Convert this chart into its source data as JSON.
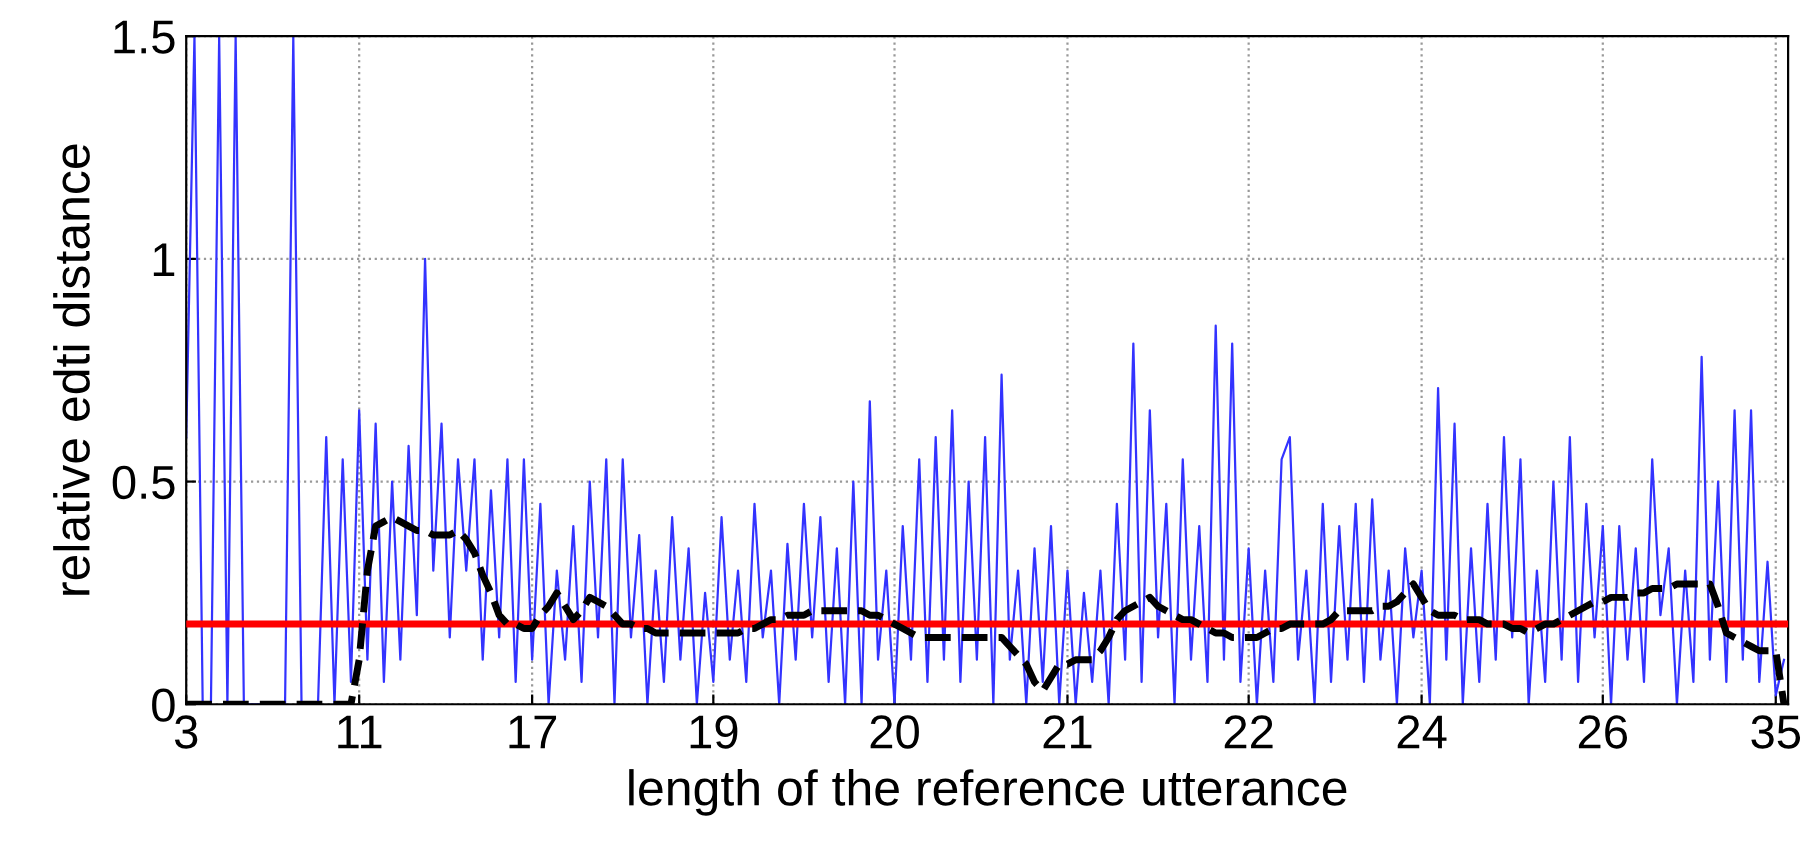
{
  "chart_data": {
    "type": "line",
    "xlabel": "length of the reference utterance",
    "ylabel": "relative edti distance",
    "ylim": [
      0,
      1.5
    ],
    "yticks": [
      0,
      {
        "value": 0.5,
        "label": "0.5"
      },
      1,
      {
        "value": 1.5,
        "label": "1.5"
      }
    ],
    "grid": true,
    "categories": [
      "3",
      null,
      null,
      null,
      null,
      null,
      null,
      null,
      null,
      null,
      null,
      null,
      null,
      null,
      null,
      null,
      null,
      null,
      null,
      null,
      null,
      "11",
      null,
      null,
      null,
      null,
      null,
      null,
      null,
      null,
      null,
      null,
      null,
      null,
      null,
      null,
      null,
      null,
      null,
      null,
      null,
      null,
      "17",
      null,
      null,
      null,
      null,
      null,
      null,
      null,
      null,
      null,
      null,
      null,
      null,
      null,
      null,
      null,
      null,
      null,
      null,
      null,
      null,
      null,
      "19",
      null,
      null,
      null,
      null,
      null,
      null,
      null,
      null,
      null,
      null,
      null,
      null,
      null,
      null,
      null,
      null,
      null,
      null,
      null,
      null,
      null,
      "20",
      null,
      null,
      null,
      null,
      null,
      null,
      null,
      null,
      null,
      null,
      null,
      null,
      null,
      null,
      null,
      null,
      null,
      null,
      null,
      null,
      "21",
      null,
      null,
      null,
      null,
      null,
      null,
      null,
      null,
      null,
      null,
      null,
      null,
      null,
      null,
      null,
      null,
      null,
      null,
      null,
      null,
      null,
      "22",
      null,
      null,
      null,
      null,
      null,
      null,
      null,
      null,
      null,
      null,
      null,
      null,
      null,
      null,
      null,
      null,
      null,
      null,
      null,
      null,
      "24",
      null,
      null,
      null,
      null,
      null,
      null,
      null,
      null,
      null,
      null,
      null,
      null,
      null,
      null,
      null,
      null,
      null,
      null,
      null,
      null,
      null,
      "26",
      null,
      null,
      null,
      null,
      null,
      null,
      null,
      null,
      null,
      null,
      null,
      null,
      null,
      null,
      null,
      null,
      null,
      null,
      null,
      null,
      "35",
      null
    ],
    "series": [
      {
        "color": "#3333ff",
        "line_style": "solid",
        "values": [
          0.6,
          1.5,
          0,
          0,
          1.5,
          0,
          1.5,
          0,
          0,
          0,
          0,
          0,
          0,
          1.5,
          0,
          0,
          0,
          0.6,
          0,
          0.55,
          0.05,
          0.66,
          0.1,
          0.63,
          0.05,
          0.5,
          0.1,
          0.58,
          0.2,
          1.0,
          0.3,
          0.63,
          0.15,
          0.55,
          0.3,
          0.55,
          0.1,
          0.48,
          0.15,
          0.55,
          0.05,
          0.55,
          0.1,
          0.45,
          0,
          0.3,
          0.1,
          0.4,
          0.05,
          0.5,
          0.15,
          0.55,
          0,
          0.55,
          0.15,
          0.38,
          0,
          0.3,
          0.05,
          0.42,
          0.1,
          0.35,
          0,
          0.25,
          0.05,
          0.42,
          0.1,
          0.3,
          0.05,
          0.45,
          0.15,
          0.3,
          0,
          0.36,
          0.1,
          0.45,
          0.15,
          0.42,
          0.05,
          0.35,
          0,
          0.5,
          0,
          0.68,
          0.1,
          0.3,
          0,
          0.4,
          0.1,
          0.55,
          0.05,
          0.6,
          0.1,
          0.66,
          0.05,
          0.5,
          0.1,
          0.6,
          0,
          0.74,
          0.1,
          0.3,
          0,
          0.35,
          0.05,
          0.4,
          0,
          0.3,
          0,
          0.25,
          0.05,
          0.3,
          0,
          0.45,
          0.1,
          0.81,
          0.05,
          0.66,
          0.15,
          0.45,
          0,
          0.55,
          0.1,
          0.4,
          0.05,
          0.85,
          0.1,
          0.81,
          0.05,
          0.35,
          0,
          0.3,
          0.05,
          0.55,
          0.6,
          0.1,
          0.3,
          0,
          0.45,
          0.05,
          0.4,
          0.1,
          0.45,
          0.05,
          0.46,
          0.1,
          0.3,
          0,
          0.35,
          0.15,
          0.3,
          0,
          0.71,
          0.1,
          0.63,
          0,
          0.35,
          0.05,
          0.45,
          0.1,
          0.6,
          0.15,
          0.55,
          0,
          0.3,
          0.05,
          0.5,
          0.1,
          0.6,
          0.05,
          0.45,
          0.15,
          0.4,
          0,
          0.4,
          0.1,
          0.35,
          0.05,
          0.55,
          0.2,
          0.35,
          0,
          0.3,
          0.05,
          0.78,
          0.1,
          0.5,
          0.05,
          0.66,
          0.1,
          0.66,
          0.05,
          0.32,
          0.02,
          0.1
        ]
      },
      {
        "color": "#000000",
        "line_style": "dashed",
        "values": [
          0,
          0,
          0,
          0,
          0,
          0,
          0,
          0,
          0,
          0,
          0,
          0,
          0,
          0,
          0,
          0,
          0,
          0,
          0,
          0,
          0,
          0.1,
          0.3,
          0.4,
          0.41,
          0.42,
          0.41,
          0.4,
          0.39,
          0.39,
          0.38,
          0.38,
          0.38,
          0.39,
          0.37,
          0.34,
          0.29,
          0.25,
          0.2,
          0.18,
          0.18,
          0.17,
          0.17,
          0.2,
          0.22,
          0.25,
          0.22,
          0.19,
          0.21,
          0.24,
          0.23,
          0.22,
          0.2,
          0.18,
          0.18,
          0.17,
          0.17,
          0.16,
          0.16,
          0.16,
          0.16,
          0.16,
          0.16,
          0.16,
          0.16,
          0.16,
          0.16,
          0.16,
          0.17,
          0.17,
          0.18,
          0.19,
          0.19,
          0.2,
          0.2,
          0.2,
          0.21,
          0.21,
          0.21,
          0.21,
          0.21,
          0.21,
          0.21,
          0.2,
          0.2,
          0.19,
          0.18,
          0.17,
          0.16,
          0.15,
          0.15,
          0.15,
          0.15,
          0.15,
          0.15,
          0.15,
          0.15,
          0.15,
          0.15,
          0.15,
          0.13,
          0.11,
          0.09,
          0.05,
          0.03,
          0.06,
          0.09,
          0.09,
          0.1,
          0.1,
          0.1,
          0.12,
          0.15,
          0.19,
          0.21,
          0.22,
          0.23,
          0.24,
          0.22,
          0.21,
          0.2,
          0.19,
          0.19,
          0.18,
          0.17,
          0.16,
          0.16,
          0.15,
          0.15,
          0.15,
          0.15,
          0.16,
          0.17,
          0.17,
          0.18,
          0.18,
          0.18,
          0.18,
          0.18,
          0.19,
          0.21,
          0.21,
          0.21,
          0.21,
          0.21,
          0.22,
          0.22,
          0.23,
          0.25,
          0.27,
          0.24,
          0.21,
          0.2,
          0.2,
          0.2,
          0.19,
          0.19,
          0.19,
          0.18,
          0.18,
          0.18,
          0.17,
          0.17,
          0.16,
          0.17,
          0.18,
          0.18,
          0.19,
          0.2,
          0.21,
          0.22,
          0.23,
          0.23,
          0.24,
          0.24,
          0.24,
          0.25,
          0.25,
          0.26,
          0.26,
          0.26,
          0.27,
          0.27,
          0.27,
          0.27,
          0.27,
          0.22,
          0.16,
          0.15,
          0.14,
          0.13,
          0.12,
          0.12,
          0.12,
          0
        ]
      }
    ],
    "ref_lines": [
      {
        "axis": "y",
        "value": 0.18,
        "color": "#ff0000",
        "line_style": "solid"
      }
    ]
  }
}
